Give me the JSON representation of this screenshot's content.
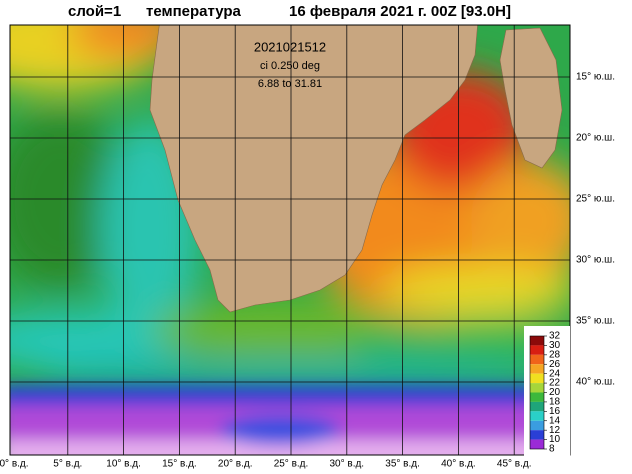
{
  "title": {
    "layer": "слой=1",
    "variable": "температура",
    "time": "16 февраля 2021 г. 00Z [93.0H]"
  },
  "annotations": [
    "2021021512",
    "ci 0.250 deg",
    "6.88 to 31.81"
  ],
  "lon_labels": [
    "0° в.д.",
    "5° в.д.",
    "10° в.д.",
    "15° в.д.",
    "20° в.д.",
    "25° в.д.",
    "30° в.д.",
    "35° в.д.",
    "40° в.д.",
    "45° в.д."
  ],
  "lat_labels": [
    "15° ю.ш.",
    "20° ю.ш.",
    "25° ю.ш.",
    "30° ю.ш.",
    "35° ю.ш.",
    "40° ю.ш."
  ],
  "colorbar": {
    "ticks": [
      32,
      30,
      28,
      26,
      24,
      22,
      20,
      18,
      16,
      14,
      12,
      10,
      8
    ],
    "colors": [
      "#8b0a0a",
      "#d81e12",
      "#f0641a",
      "#f5a623",
      "#f0e020",
      "#a6d63a",
      "#3cb83c",
      "#1fa57a",
      "#2ad0c8",
      "#3a9de0",
      "#2a3fd6",
      "#9b2ad6"
    ]
  }
}
